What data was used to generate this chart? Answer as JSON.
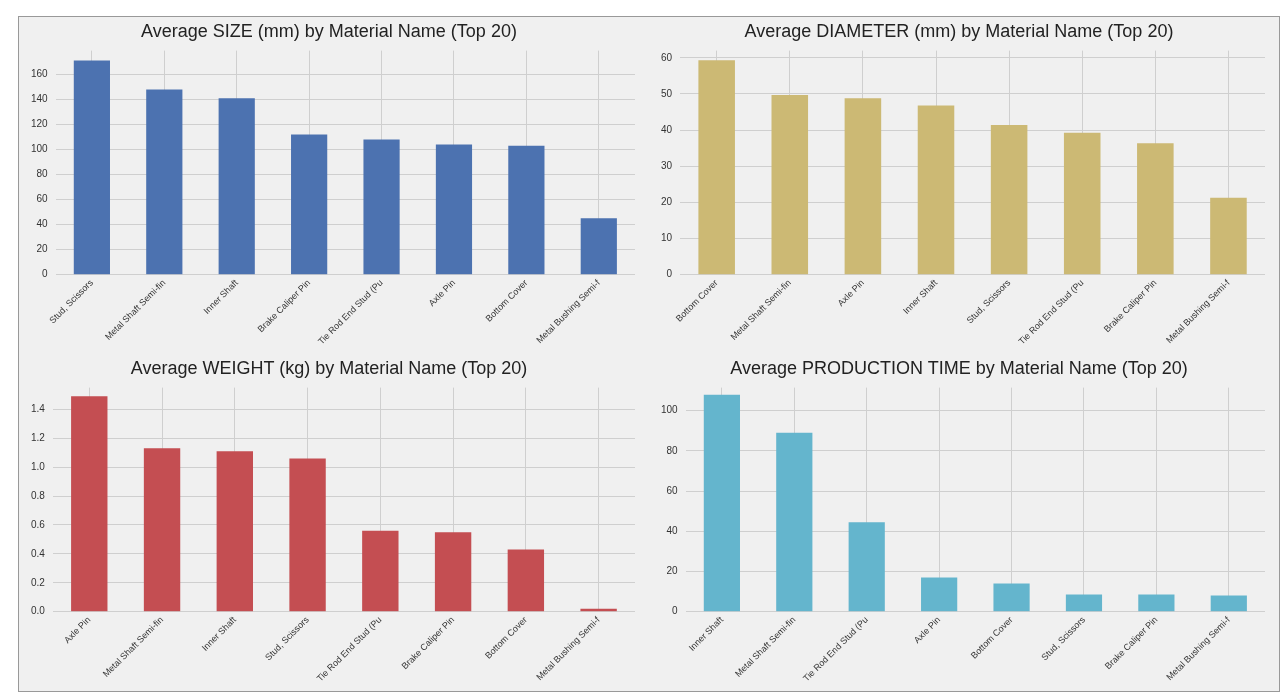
{
  "chart_data": [
    {
      "type": "bar",
      "title": "Average SIZE (mm) by Material Name (Top 20)",
      "categories": [
        "Stud, Scissors",
        "Metal Shaft Semi-fin",
        "Inner Shaft",
        "Brake Caliper Pin",
        "Tie Rod End Stud (Pu",
        "Axle Pin",
        "Bottom Cover",
        "Metal Bushing Semi-f"
      ],
      "values": [
        171,
        148,
        141,
        112,
        108,
        104,
        103,
        45
      ],
      "color": "#4c72b0",
      "ylim": [
        0,
        179
      ],
      "yticks": [
        0,
        20,
        40,
        60,
        80,
        100,
        120,
        140,
        160
      ],
      "grid": true
    },
    {
      "type": "bar",
      "title": "Average DIAMETER (mm) by Material Name (Top 20)",
      "categories": [
        "Bottom Cover",
        "Metal Shaft Semi-fin",
        "Axle Pin",
        "Inner Shaft",
        "Stud, Scissors",
        "Tie Rod End Stud (Pu",
        "Brake Caliper Pin",
        "Metal Bushing Semi-f"
      ],
      "values": [
        59.3,
        49.7,
        48.8,
        46.8,
        41.4,
        39.3,
        36.4,
        21.3
      ],
      "color": "#ccb974",
      "ylim": [
        0,
        62
      ],
      "yticks": [
        0,
        10,
        20,
        30,
        40,
        50,
        60
      ],
      "grid": true
    },
    {
      "type": "bar",
      "title": "Average WEIGHT (kg) by Material Name (Top 20)",
      "categories": [
        "Axle Pin",
        "Metal Shaft Semi-fin",
        "Inner Shaft",
        "Stud, Scissors",
        "Tie Rod End Stud (Pu",
        "Brake Caliper Pin",
        "Bottom Cover",
        "Metal Bushing Semi-f"
      ],
      "values": [
        1.49,
        1.13,
        1.11,
        1.06,
        0.56,
        0.55,
        0.43,
        0.02
      ],
      "color": "#c44e52",
      "ylim": [
        0,
        1.55
      ],
      "yticks": [
        {
          "value": 0,
          "label": "0.0"
        },
        0.2,
        0.4,
        0.6,
        0.8,
        {
          "value": 1,
          "label": "1.0"
        },
        1.2,
        1.4
      ],
      "grid": true
    },
    {
      "type": "bar",
      "title": "Average PRODUCTION TIME by Material Name (Top 20)",
      "categories": [
        "Inner Shaft",
        "Metal Shaft Semi-fin",
        "Tie Rod End Stud (Pu",
        "Axle Pin",
        "Bottom Cover",
        "Stud, Scissors",
        "Brake Caliper Pin",
        "Metal Bushing Semi-f"
      ],
      "values": [
        108,
        89,
        44.5,
        17,
        14,
        8.5,
        8.5,
        8
      ],
      "color": "#64b5cd",
      "ylim": [
        0,
        111.5
      ],
      "yticks": [
        0,
        20,
        40,
        60,
        80,
        100
      ],
      "grid": true
    }
  ]
}
